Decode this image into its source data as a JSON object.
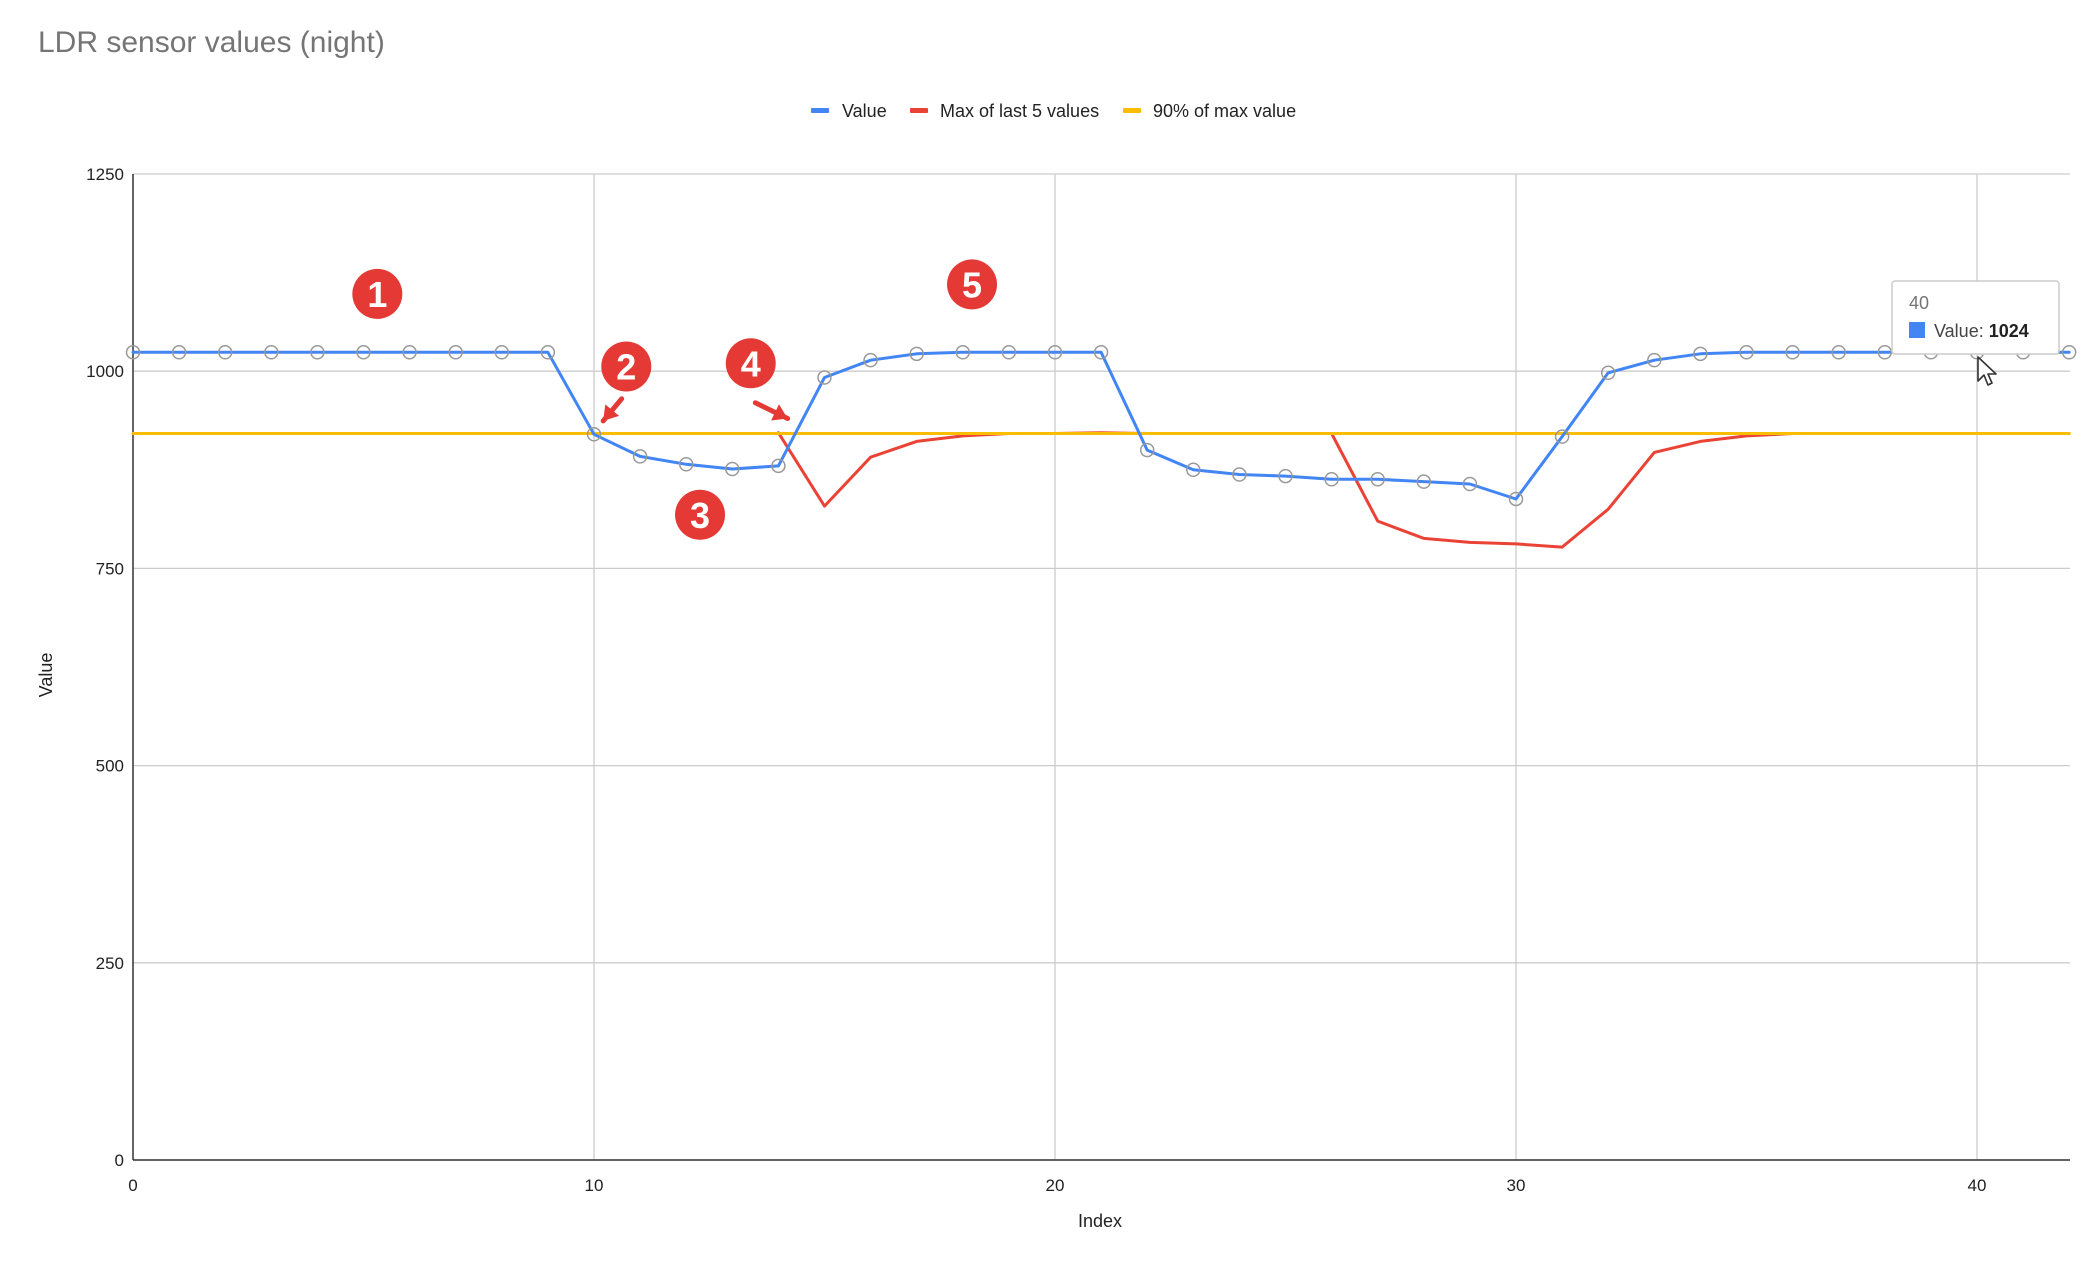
{
  "chart_data": {
    "type": "line",
    "title": "LDR sensor values (night)",
    "xlabel": "Index",
    "ylabel": "Value",
    "xlim": [
      0,
      42
    ],
    "ylim": [
      0,
      1250
    ],
    "x_ticks": [
      0,
      10,
      20,
      30,
      40
    ],
    "y_ticks": [
      0,
      250,
      500,
      750,
      1000,
      1250
    ],
    "grid": true,
    "legend_position": "top",
    "series": [
      {
        "name": "Value",
        "color": "#4285f4",
        "markers": true,
        "x": [
          0,
          1,
          2,
          3,
          4,
          5,
          6,
          7,
          8,
          9,
          10,
          11,
          12,
          13,
          14,
          15,
          16,
          17,
          18,
          19,
          20,
          21,
          22,
          23,
          24,
          25,
          26,
          27,
          28,
          29,
          30,
          31,
          32,
          33,
          34,
          35,
          36,
          37,
          38,
          39,
          40,
          41,
          42
        ],
        "values": [
          1024,
          1024,
          1024,
          1024,
          1024,
          1024,
          1024,
          1024,
          1024,
          1024,
          920,
          892,
          882,
          876,
          880,
          992,
          1014,
          1022,
          1024,
          1024,
          1024,
          1024,
          900,
          875,
          869,
          867,
          863,
          863,
          860,
          857,
          838,
          917,
          998,
          1014,
          1022,
          1024,
          1024,
          1024,
          1024,
          1024,
          1024,
          1024,
          1024
        ]
      },
      {
        "name": "Max of last 5 values",
        "color": "#ea4335",
        "markers": false,
        "x": [
          14,
          15,
          16,
          17,
          18,
          19,
          20,
          21,
          22,
          23,
          24,
          25,
          26,
          27,
          28,
          29,
          30,
          31,
          32,
          33,
          34,
          35,
          36,
          37,
          38,
          39,
          40,
          41,
          42
        ],
        "values": [
          922,
          829,
          891,
          911,
          918,
          921,
          921,
          922,
          921,
          921,
          921,
          921,
          921,
          810,
          788,
          783,
          781,
          777,
          825,
          897,
          911,
          918,
          921,
          921,
          921,
          921,
          921,
          921,
          921
        ]
      },
      {
        "name": "90% of max value",
        "color": "#fbbc04",
        "markers": false,
        "x": [
          0,
          42
        ],
        "values": [
          921,
          921
        ]
      }
    ],
    "annotations": [
      {
        "label": "1",
        "x": 5.3,
        "y": 1098
      },
      {
        "label": "2",
        "x": 10.7,
        "y": 1006
      },
      {
        "label": "3",
        "x": 12.3,
        "y": 818
      },
      {
        "label": "4",
        "x": 13.4,
        "y": 1010
      },
      {
        "label": "5",
        "x": 18.2,
        "y": 1110
      }
    ],
    "arrows": [
      {
        "from": [
          10.6,
          965
        ],
        "to": [
          10.2,
          937
        ]
      },
      {
        "from": [
          13.5,
          960
        ],
        "to": [
          14.2,
          940
        ]
      }
    ],
    "tooltip": {
      "header": "40",
      "series_label": "Value",
      "value": "1024",
      "color": "#4285f4"
    }
  }
}
